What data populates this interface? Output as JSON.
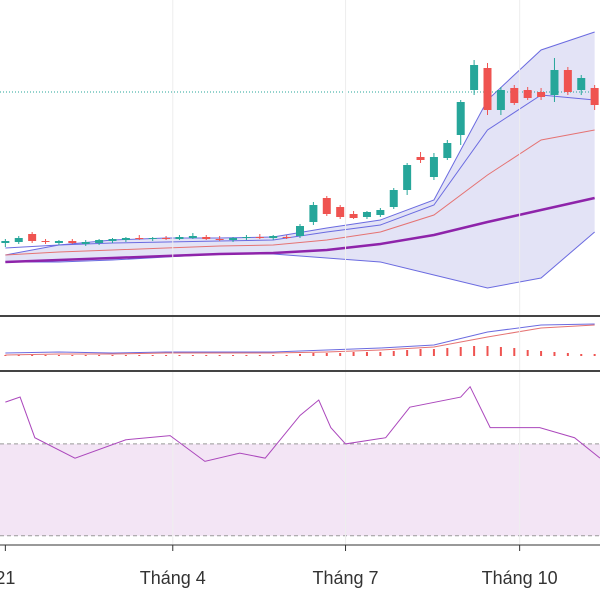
{
  "chart_data": [
    {
      "type": "candlestick",
      "x": [
        0,
        1,
        2,
        3,
        4,
        5,
        6,
        7,
        8,
        9,
        10,
        11,
        12,
        13,
        14,
        15,
        16,
        17,
        18,
        19,
        20,
        21,
        22,
        23,
        24,
        25,
        26,
        27,
        28,
        29,
        30,
        31,
        32,
        33,
        34,
        35,
        36,
        37,
        38,
        39,
        40,
        41,
        42,
        43,
        44
      ],
      "open": [
        72,
        73,
        81,
        74,
        72,
        74,
        71,
        72,
        74,
        75,
        77,
        76,
        77,
        76,
        77,
        78,
        76,
        75,
        77,
        78,
        77,
        78,
        79,
        93,
        117,
        108,
        101,
        98,
        100,
        108,
        125,
        158,
        138,
        157,
        180,
        225,
        247,
        205,
        227,
        225,
        223,
        220,
        245,
        225,
        227
      ],
      "high": [
        76,
        79,
        83,
        76,
        75,
        76,
        75,
        76,
        77,
        78,
        80,
        78,
        79,
        80,
        82,
        80,
        79,
        78,
        80,
        81,
        80,
        80,
        91,
        113,
        119,
        110,
        104,
        104,
        107,
        127,
        152,
        163,
        162,
        175,
        215,
        255,
        252,
        228,
        230,
        228,
        227,
        257,
        248,
        240,
        230
      ],
      "low": [
        68,
        71,
        72,
        71,
        70,
        71,
        69,
        70,
        72,
        73,
        75,
        74,
        75,
        75,
        76,
        75,
        74,
        73,
        75,
        76,
        75,
        76,
        77,
        90,
        99,
        96,
        96,
        96,
        98,
        106,
        120,
        152,
        135,
        155,
        170,
        220,
        200,
        200,
        210,
        215,
        215,
        213,
        220,
        220,
        205
      ],
      "close": [
        74,
        77,
        74,
        73,
        74,
        72,
        73,
        75,
        76,
        77,
        76,
        77,
        76,
        78,
        79,
        76,
        75,
        77,
        78,
        77,
        79,
        77,
        89,
        110,
        101,
        98,
        97,
        103,
        105,
        125,
        150,
        155,
        158,
        172,
        213,
        250,
        205,
        225,
        212,
        217,
        218,
        245,
        223,
        237,
        210
      ],
      "up_color": "#26a69a",
      "down_color": "#ef5350",
      "xlim": [
        -0.4,
        44.4
      ],
      "ylim": [
        0,
        315
      ],
      "ref_line": 223,
      "ref_color": "#26a69a",
      "overlays": {
        "x": [
          0,
          4,
          8,
          12,
          16,
          20,
          24,
          28,
          32,
          36,
          40,
          44
        ],
        "upper": [
          60,
          70,
          75,
          77,
          77,
          78,
          87,
          95,
          115,
          215,
          265,
          283
        ],
        "lower": [
          53,
          53,
          55,
          58,
          61,
          61,
          57,
          53,
          40,
          27,
          37,
          83
        ],
        "inner": [
          67,
          70,
          72,
          73,
          74,
          75,
          83,
          90,
          110,
          185,
          220,
          215
        ],
        "ma": [
          60,
          63,
          65,
          67,
          69,
          70,
          75,
          83,
          100,
          140,
          175,
          185
        ],
        "ma_long": [
          53,
          55,
          57,
          59,
          61,
          62,
          65,
          71,
          80,
          93,
          105,
          117
        ]
      },
      "band_color": "#6b6be0",
      "band_fill": "#e3e3f6",
      "ma_color": "#e57373",
      "ma_long_color": "#8e24aa"
    },
    {
      "type": "macd",
      "xlim": [
        -0.4,
        44.4
      ],
      "ylim": [
        -14,
        38
      ],
      "x": [
        0,
        1,
        2,
        3,
        4,
        5,
        6,
        7,
        8,
        9,
        10,
        11,
        12,
        13,
        14,
        15,
        16,
        17,
        18,
        19,
        20,
        21,
        22,
        23,
        24,
        25,
        26,
        27,
        28,
        29,
        30,
        31,
        32,
        33,
        34,
        35,
        36,
        37,
        38,
        39,
        40,
        41,
        42,
        43,
        44
      ],
      "hist": [
        1,
        1,
        1,
        1,
        1,
        1,
        1,
        1,
        1,
        1,
        1,
        1,
        1,
        1,
        1,
        1,
        1,
        1,
        1,
        1,
        1,
        1,
        2,
        3,
        3,
        3,
        4,
        4,
        4,
        5,
        6,
        7,
        7,
        8,
        9,
        10,
        10,
        9,
        8,
        6,
        5,
        4,
        3,
        2,
        2
      ],
      "hist_color": "#ef5350",
      "line_x": [
        0,
        4,
        8,
        12,
        16,
        20,
        24,
        28,
        32,
        36,
        40,
        44
      ],
      "macd": [
        3,
        4,
        3,
        4,
        4,
        4,
        6,
        8,
        11,
        24,
        31,
        32
      ],
      "signal": [
        1,
        2,
        2,
        3,
        3,
        3,
        4,
        6,
        9,
        19,
        28,
        31
      ],
      "macd_color": "#6b6be0",
      "signal_color": "#e57373"
    },
    {
      "type": "rsi",
      "xlim": [
        -0.4,
        44.4
      ],
      "ylim": [
        26,
        100
      ],
      "x": [
        0,
        1.1,
        2.2,
        5.2,
        9,
        12.3,
        14.9,
        17.5,
        19.4,
        22,
        23.4,
        24.3,
        25.4,
        28.4,
        30.2,
        34,
        34.7,
        36.2,
        39.9,
        42.5,
        44.4
      ],
      "values": [
        88.2,
        90.4,
        72.7,
        63.8,
        71.8,
        73.6,
        62.4,
        66,
        63.8,
        82.4,
        89.1,
        77.1,
        70,
        72.7,
        86,
        90.4,
        94.9,
        77.1,
        77.1,
        72.7,
        63.8
      ],
      "color": "#ab47bc",
      "bands": [
        30,
        70
      ],
      "band_fill": "#f3e5f5",
      "xticks": [
        {
          "value": 0,
          "label": "21"
        },
        {
          "value": 12.5,
          "label": "Tháng 4"
        },
        {
          "value": 25.4,
          "label": "Tháng 7"
        },
        {
          "value": 38.4,
          "label": "Tháng 10"
        }
      ],
      "grid": true
    }
  ]
}
